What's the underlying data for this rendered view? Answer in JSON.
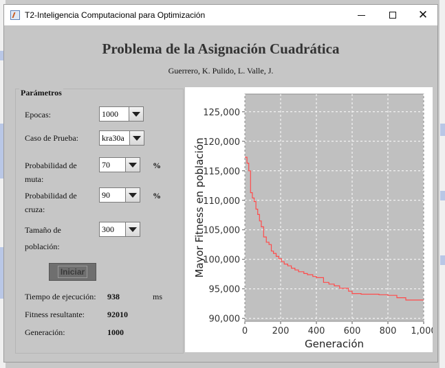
{
  "window": {
    "title": "T2-Inteligencia Computacional para Optimización",
    "minimize_glyph": "",
    "maximize_glyph": "",
    "close_glyph": "✕"
  },
  "header": {
    "title": "Problema de la Asignación Cuadrática",
    "authors": "Guerrero, K. Pulido, L. Valle, J."
  },
  "params": {
    "title": "Parámetros",
    "epocas": {
      "label": "Epocas:",
      "value": "1000"
    },
    "caso": {
      "label": "Caso de Prueba:",
      "value": "kra30a"
    },
    "muta": {
      "label_1": "Probabilidad de",
      "label_2": "muta:",
      "value": "70",
      "unit": "%"
    },
    "cruza": {
      "label_1": "Probabilidad de",
      "label_2": "cruza:",
      "value": "90",
      "unit": "%"
    },
    "poblacion": {
      "label_1": "Tamaño de",
      "label_2": "población:",
      "value": "300"
    },
    "start_label": "Iniciar"
  },
  "results": {
    "tiempo": {
      "label": "Tiempo de ejecución:",
      "value": "938",
      "unit": "ms"
    },
    "fitness": {
      "label": "Fitness resultante:",
      "value": "92010"
    },
    "generacion": {
      "label": "Generación:",
      "value": "1000"
    }
  },
  "colors": {
    "plot_bg": "#c0c0c0",
    "series": "#ff4a4a",
    "grid": "#ffffff"
  },
  "chart_data": {
    "type": "line",
    "title": "",
    "xlabel": "Generación",
    "ylabel": "Mayor Fitness en población",
    "xlim": [
      0,
      1000
    ],
    "ylim": [
      89500,
      128000
    ],
    "xticks": [
      "0",
      "200",
      "400",
      "600",
      "800",
      "1,000"
    ],
    "xtick_values": [
      0,
      200,
      400,
      600,
      800,
      1000
    ],
    "yticks": [
      "90,000",
      "95,000",
      "100,000",
      "105,000",
      "110,000",
      "115,000",
      "120,000",
      "125,000"
    ],
    "ytick_values": [
      90000,
      95000,
      100000,
      105000,
      110000,
      115000,
      120000,
      125000
    ],
    "grid": true,
    "step": true,
    "series": [
      {
        "x": [
          0,
          12,
          22,
          32,
          42,
          52,
          62,
          72,
          82,
          92,
          105,
          120,
          135,
          148,
          160,
          175,
          190,
          205,
          220,
          240,
          260,
          280,
          300,
          330,
          350,
          380,
          400,
          440,
          470,
          500,
          530,
          580,
          600,
          650,
          700,
          750,
          800,
          850,
          900,
          1000
        ],
        "y": [
          117300,
          116300,
          115000,
          111300,
          110400,
          109800,
          108500,
          107600,
          106500,
          105500,
          103800,
          102900,
          102500,
          101400,
          101000,
          100500,
          100100,
          99600,
          99200,
          98900,
          98500,
          98200,
          97900,
          97600,
          97400,
          97100,
          96900,
          96100,
          95800,
          95500,
          95100,
          94600,
          94200,
          94100,
          94100,
          94000,
          93900,
          93500,
          93100,
          93100
        ]
      }
    ]
  }
}
